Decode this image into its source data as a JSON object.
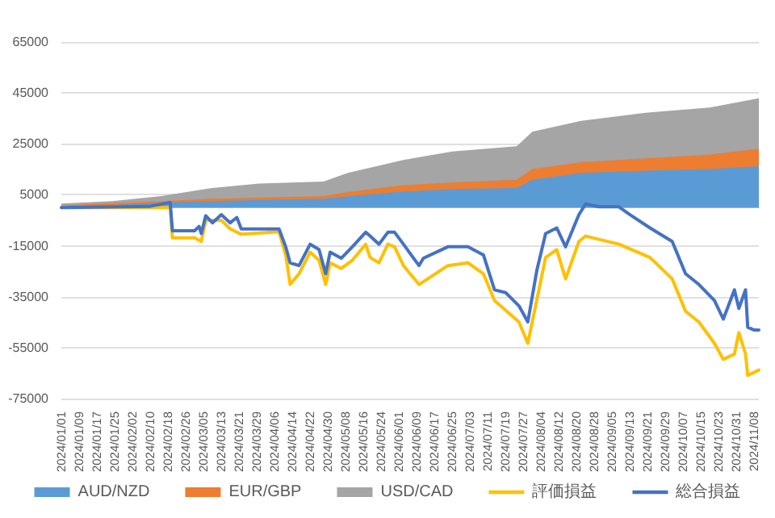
{
  "chart_data": {
    "type": "area",
    "stacked": true,
    "x": [
      "2024-01-01",
      "2024-01-24",
      "2024-02-15",
      "2024-03-09",
      "2024-03-30",
      "2024-04-28",
      "2024-05-09",
      "2024-06-03",
      "2024-06-25",
      "2024-07-24",
      "2024-07-31",
      "2024-08-22",
      "2024-09-20",
      "2024-10-19",
      "2024-11-10"
    ],
    "series": [
      {
        "name": "AUD/NZD",
        "color": "#5b9bd5",
        "values": [
          500,
          1000,
          2000,
          2500,
          3000,
          3500,
          4400,
          6300,
          7300,
          7700,
          10900,
          13600,
          14500,
          15100,
          16200
        ]
      },
      {
        "name": "EUR/GBP",
        "color": "#ed7d31",
        "values": [
          300,
          800,
          500,
          1000,
          900,
          1000,
          1700,
          2500,
          2500,
          3200,
          4200,
          4200,
          4800,
          5700,
          6900
        ]
      },
      {
        "name": "USD/CAD",
        "color": "#a5a5a5",
        "values": [
          800,
          700,
          2000,
          4200,
          5500,
          5700,
          7500,
          9900,
          12200,
          13200,
          14700,
          16200,
          17900,
          18500,
          19800
        ]
      },
      {
        "name": "評価損益",
        "type": "line",
        "color": "#ffc000",
        "x": [
          "2024-01-01",
          "2024-02-19",
          "2024-02-20",
          "2024-03-01",
          "2024-03-04",
          "2024-03-06",
          "2024-03-13",
          "2024-03-17",
          "2024-03-22",
          "2024-04-08",
          "2024-04-11",
          "2024-04-13",
          "2024-04-17",
          "2024-04-22",
          "2024-04-26",
          "2024-04-29",
          "2024-05-01",
          "2024-05-06",
          "2024-05-11",
          "2024-05-17",
          "2024-05-19",
          "2024-05-23",
          "2024-05-27",
          "2024-05-30",
          "2024-06-03",
          "2024-06-10",
          "2024-06-23",
          "2024-07-02",
          "2024-07-09",
          "2024-07-14",
          "2024-07-25",
          "2024-07-29",
          "2024-08-02",
          "2024-08-06",
          "2024-08-11",
          "2024-08-15",
          "2024-08-21",
          "2024-08-24",
          "2024-09-08",
          "2024-09-22",
          "2024-10-02",
          "2024-10-08",
          "2024-10-14",
          "2024-10-21",
          "2024-10-25",
          "2024-10-30",
          "2024-11-01",
          "2024-11-04",
          "2024-11-05",
          "2024-11-10"
        ],
        "values": [
          0,
          0,
          -11900,
          -11900,
          -13300,
          -5000,
          -5000,
          -8400,
          -10500,
          -9500,
          -18600,
          -30200,
          -26000,
          -17500,
          -20700,
          -30200,
          -21700,
          -23900,
          -20700,
          -14400,
          -19600,
          -21700,
          -14400,
          -15400,
          -22800,
          -30200,
          -22800,
          -21700,
          -26000,
          -36500,
          -44900,
          -53300,
          -36500,
          -19600,
          -16500,
          -28000,
          -13300,
          -11200,
          -14400,
          -19600,
          -28000,
          -40700,
          -44900,
          -53300,
          -59600,
          -57500,
          -49100,
          -57500,
          -65900,
          -63800
        ]
      },
      {
        "name": "総合損益",
        "type": "line",
        "color": "#4472c4",
        "x": [
          "2024-01-01",
          "2024-02-10",
          "2024-02-19",
          "2024-02-20",
          "2024-03-01",
          "2024-03-03",
          "2024-03-04",
          "2024-03-06",
          "2024-03-09",
          "2024-03-13",
          "2024-03-17",
          "2024-03-20",
          "2024-03-22",
          "2024-04-08",
          "2024-04-11",
          "2024-04-13",
          "2024-04-17",
          "2024-04-22",
          "2024-04-26",
          "2024-04-29",
          "2024-05-01",
          "2024-05-06",
          "2024-05-11",
          "2024-05-17",
          "2024-05-19",
          "2024-05-23",
          "2024-05-27",
          "2024-05-30",
          "2024-06-03",
          "2024-06-10",
          "2024-06-12",
          "2024-06-23",
          "2024-07-02",
          "2024-07-09",
          "2024-07-14",
          "2024-07-19",
          "2024-07-25",
          "2024-07-29",
          "2024-08-02",
          "2024-08-06",
          "2024-08-11",
          "2024-08-15",
          "2024-08-21",
          "2024-08-24",
          "2024-08-30",
          "2024-09-08",
          "2024-09-13",
          "2024-09-22",
          "2024-10-02",
          "2024-10-08",
          "2024-10-14",
          "2024-10-21",
          "2024-10-25",
          "2024-10-30",
          "2024-11-01",
          "2024-11-04",
          "2024-11-05",
          "2024-11-08",
          "2024-11-10"
        ],
        "values": [
          0,
          500,
          2000,
          -9100,
          -9100,
          -7400,
          -10200,
          -3200,
          -6000,
          -2800,
          -6000,
          -3900,
          -8400,
          -8400,
          -15400,
          -21700,
          -22800,
          -14400,
          -16500,
          -26000,
          -17500,
          -19900,
          -15400,
          -9700,
          -11200,
          -14400,
          -9700,
          -9700,
          -14400,
          -22800,
          -19900,
          -15400,
          -15400,
          -18600,
          -32300,
          -33400,
          -38600,
          -44900,
          -24900,
          -10200,
          -8000,
          -15400,
          -2800,
          1400,
          300,
          300,
          -2800,
          -8000,
          -13300,
          -26000,
          -30200,
          -36500,
          -43800,
          -32300,
          -39600,
          -32300,
          -47000,
          -48100,
          -48100
        ]
      }
    ],
    "xlim": [
      "2024-01-01",
      "2024-11-10"
    ],
    "xticks": [
      {
        "value": "2024-01-01",
        "label": "2024/01/01"
      },
      {
        "value": "2024-01-09",
        "label": "2024/01/09"
      },
      {
        "value": "2024-01-17",
        "label": "2024/01/17"
      },
      {
        "value": "2024-01-25",
        "label": "2024/01/25"
      },
      {
        "value": "2024-02-02",
        "label": "2024/02/02"
      },
      {
        "value": "2024-02-10",
        "label": "2024/02/10"
      },
      {
        "value": "2024-02-18",
        "label": "2024/02/18"
      },
      {
        "value": "2024-02-26",
        "label": "2024/02/26"
      },
      {
        "value": "2024-03-05",
        "label": "2024/03/05"
      },
      {
        "value": "2024-03-13",
        "label": "2024/03/13"
      },
      {
        "value": "2024-03-21",
        "label": "2024/03/21"
      },
      {
        "value": "2024-03-29",
        "label": "2024/03/29"
      },
      {
        "value": "2024-04-06",
        "label": "2024/04/06"
      },
      {
        "value": "2024-04-14",
        "label": "2024/04/14"
      },
      {
        "value": "2024-04-22",
        "label": "2024/04/22"
      },
      {
        "value": "2024-04-30",
        "label": "2024/04/30"
      },
      {
        "value": "2024-05-08",
        "label": "2024/05/08"
      },
      {
        "value": "2024-05-16",
        "label": "2024/05/16"
      },
      {
        "value": "2024-05-24",
        "label": "2024/05/24"
      },
      {
        "value": "2024-06-01",
        "label": "2024/06/01"
      },
      {
        "value": "2024-06-09",
        "label": "2024/06/09"
      },
      {
        "value": "2024-06-17",
        "label": "2024/06/17"
      },
      {
        "value": "2024-06-25",
        "label": "2024/06/25"
      },
      {
        "value": "2024-07-03",
        "label": "2024/07/03"
      },
      {
        "value": "2024-07-11",
        "label": "2024/07/11"
      },
      {
        "value": "2024-07-19",
        "label": "2024/07/19"
      },
      {
        "value": "2024-07-27",
        "label": "2024/07/27"
      },
      {
        "value": "2024-08-04",
        "label": "2024/08/04"
      },
      {
        "value": "2024-08-12",
        "label": "2024/08/12"
      },
      {
        "value": "2024-08-20",
        "label": "2024/08/20"
      },
      {
        "value": "2024-08-28",
        "label": "2024/08/28"
      },
      {
        "value": "2024-09-05",
        "label": "2024/09/05"
      },
      {
        "value": "2024-09-13",
        "label": "2024/09/13"
      },
      {
        "value": "2024-09-21",
        "label": "2024/09/21"
      },
      {
        "value": "2024-09-29",
        "label": "2024/09/29"
      },
      {
        "value": "2024-10-07",
        "label": "2024/10/07"
      },
      {
        "value": "2024-10-15",
        "label": "2024/10/15"
      },
      {
        "value": "2024-10-23",
        "label": "2024/10/23"
      },
      {
        "value": "2024-10-31",
        "label": "2024/10/31"
      },
      {
        "value": "2024-11-08",
        "label": "2024/11/08"
      }
    ],
    "ylim": [
      -75000,
      65000
    ],
    "yticks": [
      -75000,
      -55000,
      -35000,
      -15000,
      5000,
      25000,
      45000,
      65000
    ],
    "grid": "y",
    "legend": "bottom",
    "marker": "none",
    "line_style": "solid"
  }
}
